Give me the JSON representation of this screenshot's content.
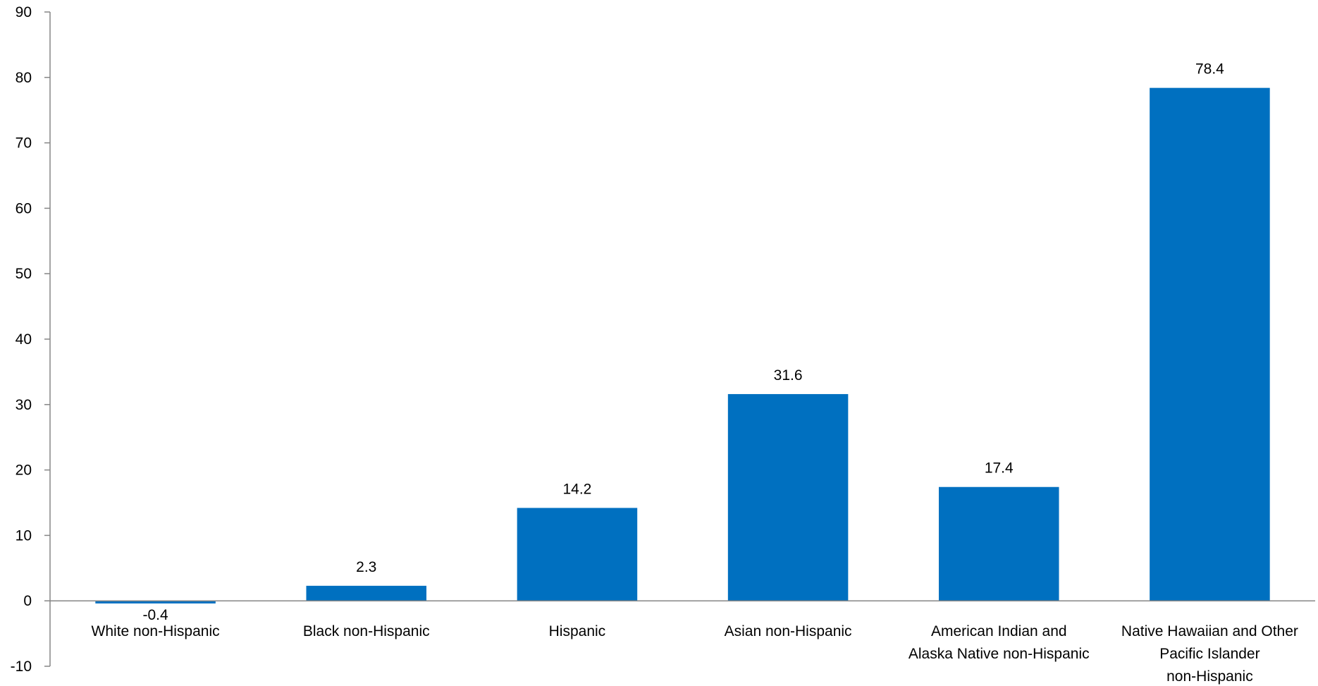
{
  "chart_data": {
    "type": "bar",
    "categories": [
      "White non-Hispanic",
      "Black non-Hispanic",
      "Hispanic",
      "Asian non-Hispanic",
      "American Indian and Alaska Native non-Hispanic",
      "Native Hawaiian and Other Pacific Islander non-Hispanic"
    ],
    "category_lines": [
      [
        "White non-Hispanic"
      ],
      [
        "Black non-Hispanic"
      ],
      [
        "Hispanic"
      ],
      [
        "Asian non-Hispanic"
      ],
      [
        "American Indian and",
        "Alaska Native non-Hispanic"
      ],
      [
        "Native Hawaiian and Other",
        "Pacific Islander",
        "non-Hispanic"
      ]
    ],
    "values": [
      -0.4,
      2.3,
      14.2,
      31.6,
      17.4,
      78.4
    ],
    "data_labels": [
      "-0.4",
      "2.3",
      "14.2",
      "31.6",
      "17.4",
      "78.4"
    ],
    "y_ticks": [
      -10,
      0,
      10,
      20,
      30,
      40,
      50,
      60,
      70,
      80,
      90
    ],
    "ylim": [
      -10,
      90
    ],
    "grid": false,
    "legend": "none",
    "bar_color": "#0070C0",
    "axis_color": "#868686",
    "title": "",
    "xlabel": "",
    "ylabel": ""
  }
}
